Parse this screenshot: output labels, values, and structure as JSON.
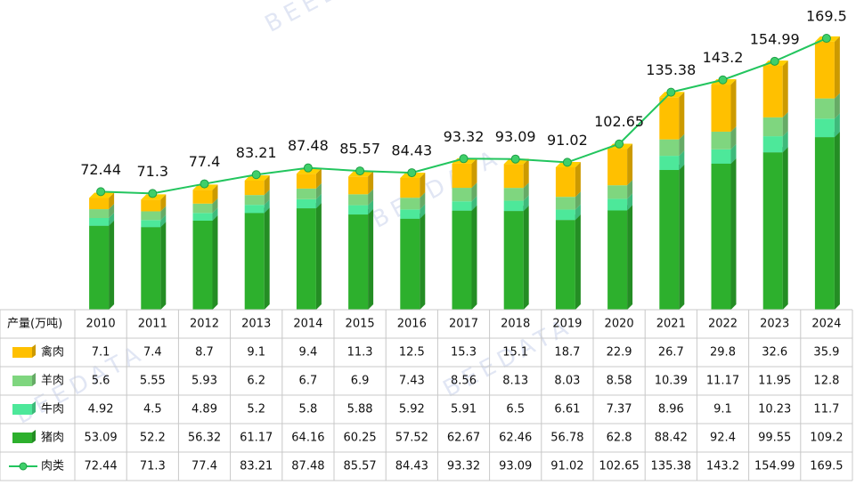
{
  "chart_data": {
    "type": "stacked-bar-line",
    "table_header": "产量(万吨)",
    "watermark": "BEEDATA",
    "categories": [
      "2010",
      "2011",
      "2012",
      "2013",
      "2014",
      "2015",
      "2016",
      "2017",
      "2018",
      "2019",
      "2020",
      "2021",
      "2022",
      "2023",
      "2024"
    ],
    "series": [
      {
        "name": "禽肉",
        "type": "bar",
        "color": "#ffc000",
        "values": [
          7.1,
          7.4,
          8.7,
          9.1,
          9.4,
          11.3,
          12.5,
          15.3,
          15.1,
          18.7,
          22.9,
          26.7,
          29.8,
          32.6,
          35.9
        ]
      },
      {
        "name": "羊肉",
        "type": "bar",
        "color": "#7fd67f",
        "values": [
          5.6,
          5.55,
          5.93,
          6.2,
          6.7,
          6.9,
          7.43,
          8.56,
          8.13,
          8.03,
          8.58,
          10.39,
          11.17,
          11.95,
          12.8
        ]
      },
      {
        "name": "牛肉",
        "type": "bar",
        "color": "#4de89a",
        "values": [
          4.92,
          4.5,
          4.89,
          5.2,
          5.8,
          5.88,
          5.92,
          5.91,
          6.5,
          6.61,
          7.37,
          8.96,
          9.1,
          10.23,
          11.7
        ]
      },
      {
        "name": "猪肉",
        "type": "bar",
        "color": "#2db02d",
        "values": [
          53.09,
          52.2,
          56.32,
          61.17,
          64.16,
          60.25,
          57.52,
          62.67,
          62.46,
          56.78,
          62.8,
          88.42,
          92.4,
          99.55,
          109.2
        ]
      },
      {
        "name": "肉类",
        "type": "line",
        "color": "#22c55e",
        "values": [
          72.44,
          71.3,
          77.4,
          83.21,
          87.48,
          85.57,
          84.43,
          93.32,
          93.09,
          91.02,
          102.65,
          135.38,
          143.2,
          154.99,
          169.5
        ]
      }
    ],
    "ylim": [
      0,
      196
    ]
  }
}
